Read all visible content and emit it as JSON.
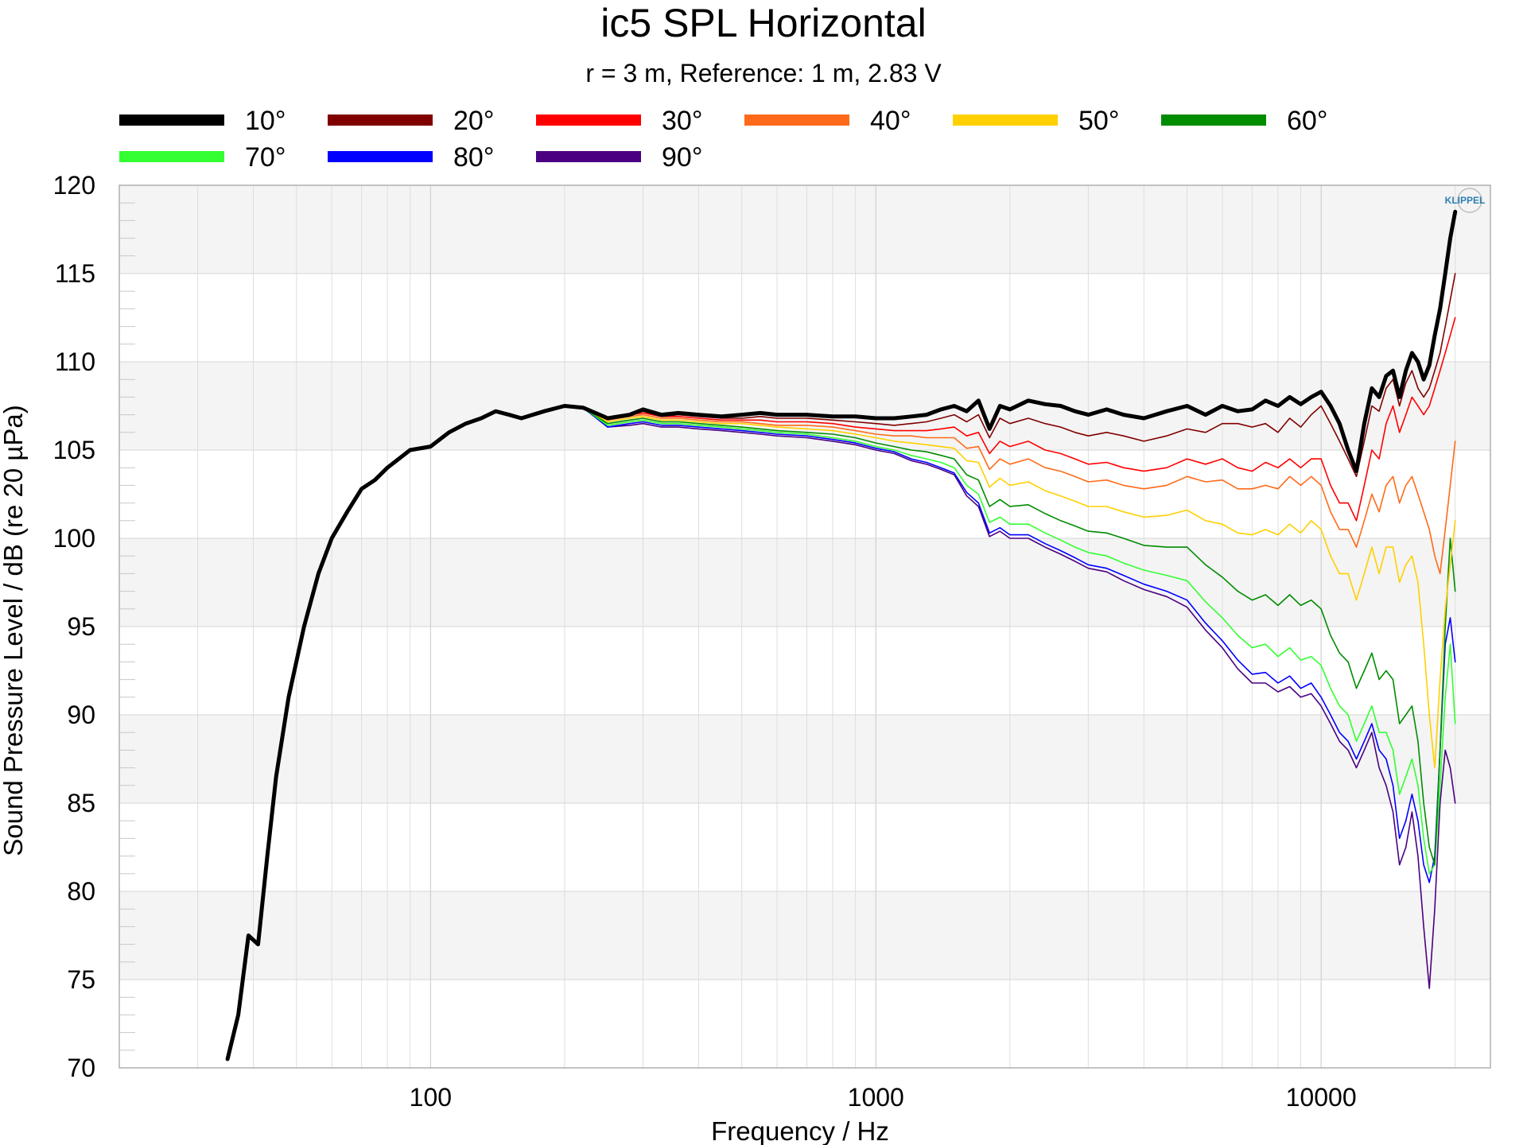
{
  "chart_data": {
    "type": "line",
    "title": "ic5 SPL Horizontal",
    "subtitle": "r = 3 m,  Reference: 1 m, 2.83 V",
    "xlabel": "Frequency / Hz",
    "ylabel": "Sound Pressure Level / dB (re 20 µPa)",
    "xscale": "log",
    "xlim": [
      20,
      24000
    ],
    "ylim": [
      70,
      120
    ],
    "xticks": [
      100,
      1000,
      10000
    ],
    "xtick_labels": [
      "100",
      "1000",
      "10000"
    ],
    "yticks": [
      70,
      75,
      80,
      85,
      90,
      95,
      100,
      105,
      110,
      115,
      120
    ],
    "yticks_labels": [
      "70",
      "75",
      "80",
      "85",
      "90",
      "95",
      "100",
      "105",
      "110",
      "115",
      "120"
    ],
    "grid": true,
    "legend_position": "top",
    "logo": "KLIPPEL",
    "x": [
      35,
      37,
      39,
      41,
      43,
      45,
      48,
      52,
      56,
      60,
      65,
      70,
      75,
      80,
      90,
      100,
      110,
      120,
      130,
      140,
      150,
      160,
      180,
      200,
      220,
      250,
      280,
      300,
      330,
      360,
      400,
      450,
      500,
      550,
      600,
      700,
      800,
      900,
      1000,
      1100,
      1200,
      1300,
      1400,
      1500,
      1600,
      1700,
      1800,
      1900,
      2000,
      2200,
      2400,
      2600,
      2800,
      3000,
      3300,
      3600,
      4000,
      4500,
      5000,
      5500,
      6000,
      6500,
      7000,
      7500,
      8000,
      8500,
      9000,
      9500,
      10000,
      10500,
      11000,
      11500,
      12000,
      12500,
      13000,
      13500,
      14000,
      14500,
      15000,
      15500,
      16000,
      16500,
      17000,
      17500,
      18000,
      18500,
      19000,
      19500,
      20000
    ],
    "series": [
      {
        "name": "10°",
        "color": "#000000",
        "width": 5,
        "values": [
          70.5,
          73.0,
          77.5,
          77.0,
          82.0,
          86.5,
          91.0,
          95.0,
          98.0,
          100.0,
          101.5,
          102.8,
          103.3,
          104.0,
          105.0,
          105.2,
          106.0,
          106.5,
          106.8,
          107.2,
          107.0,
          106.8,
          107.2,
          107.5,
          107.4,
          106.8,
          107.0,
          107.3,
          107.0,
          107.1,
          107.0,
          106.9,
          107.0,
          107.1,
          107.0,
          107.0,
          106.9,
          106.9,
          106.8,
          106.8,
          106.9,
          107.0,
          107.3,
          107.5,
          107.2,
          107.8,
          106.2,
          107.5,
          107.3,
          107.8,
          107.6,
          107.5,
          107.2,
          107.0,
          107.3,
          107.0,
          106.8,
          107.2,
          107.5,
          107.0,
          107.5,
          107.2,
          107.3,
          107.8,
          107.5,
          108.0,
          107.6,
          108.0,
          108.3,
          107.5,
          106.5,
          105.0,
          103.8,
          106.5,
          108.5,
          108.0,
          109.2,
          109.5,
          108.0,
          109.5,
          110.5,
          110.0,
          109.0,
          109.8,
          111.5,
          113.0,
          115.0,
          117.0,
          118.5
        ]
      },
      {
        "name": "20°",
        "color": "#800000",
        "width": 1.6,
        "values": [
          70.5,
          73.0,
          77.5,
          77.0,
          82.0,
          86.5,
          91.0,
          95.0,
          98.0,
          100.0,
          101.5,
          102.8,
          103.3,
          104.0,
          105.0,
          105.2,
          106.0,
          106.5,
          106.8,
          107.2,
          107.0,
          106.8,
          107.2,
          107.5,
          107.4,
          106.8,
          107.0,
          107.2,
          106.9,
          107.0,
          106.9,
          106.8,
          106.8,
          106.9,
          106.8,
          106.8,
          106.7,
          106.6,
          106.5,
          106.4,
          106.5,
          106.6,
          106.8,
          107.0,
          106.6,
          107.0,
          105.7,
          106.8,
          106.5,
          106.8,
          106.5,
          106.3,
          106.0,
          105.8,
          106.0,
          105.8,
          105.5,
          105.8,
          106.2,
          106.0,
          106.5,
          106.5,
          106.3,
          106.5,
          106.0,
          106.8,
          106.3,
          107.0,
          107.5,
          106.5,
          105.5,
          104.5,
          103.5,
          105.5,
          107.5,
          107.2,
          108.5,
          109.0,
          107.5,
          108.8,
          109.5,
          108.5,
          108.0,
          108.5,
          109.5,
          110.5,
          112.0,
          113.5,
          115.0
        ]
      },
      {
        "name": "30°",
        "color": "#ff0000",
        "width": 1.6,
        "values": [
          70.5,
          73.0,
          77.5,
          77.0,
          82.0,
          86.5,
          91.0,
          95.0,
          98.0,
          100.0,
          101.5,
          102.8,
          103.3,
          104.0,
          105.0,
          105.2,
          106.0,
          106.5,
          106.8,
          107.2,
          107.0,
          106.8,
          107.2,
          107.5,
          107.4,
          106.8,
          107.0,
          107.1,
          106.9,
          106.9,
          106.8,
          106.7,
          106.7,
          106.7,
          106.6,
          106.6,
          106.5,
          106.3,
          106.2,
          106.1,
          106.1,
          106.1,
          106.2,
          106.3,
          105.8,
          106.0,
          104.8,
          105.5,
          105.2,
          105.5,
          105.0,
          104.8,
          104.5,
          104.2,
          104.3,
          104.0,
          103.8,
          104.0,
          104.5,
          104.2,
          104.5,
          104.0,
          103.8,
          104.3,
          104.0,
          104.5,
          104.0,
          104.5,
          104.5,
          103.0,
          102.0,
          102.0,
          101.0,
          103.0,
          105.0,
          104.5,
          106.5,
          107.5,
          106.0,
          107.0,
          108.0,
          107.5,
          107.0,
          107.5,
          108.5,
          109.5,
          110.5,
          111.5,
          112.5
        ]
      },
      {
        "name": "40°",
        "color": "#ff6a1a",
        "width": 1.6,
        "values": [
          70.5,
          73.0,
          77.5,
          77.0,
          82.0,
          86.5,
          91.0,
          95.0,
          98.0,
          100.0,
          101.5,
          102.8,
          103.3,
          104.0,
          105.0,
          105.2,
          106.0,
          106.5,
          106.8,
          107.2,
          107.0,
          106.8,
          107.2,
          107.5,
          107.4,
          106.7,
          106.9,
          107.0,
          106.8,
          106.8,
          106.7,
          106.6,
          106.6,
          106.5,
          106.4,
          106.4,
          106.3,
          106.1,
          105.9,
          105.8,
          105.8,
          105.7,
          105.7,
          105.7,
          105.1,
          105.2,
          103.9,
          104.5,
          104.2,
          104.5,
          104.0,
          103.8,
          103.5,
          103.2,
          103.3,
          103.0,
          102.8,
          103.0,
          103.5,
          103.2,
          103.3,
          102.8,
          102.8,
          103.0,
          102.8,
          103.5,
          103.0,
          103.5,
          103.0,
          101.5,
          100.5,
          100.5,
          99.5,
          101.0,
          102.5,
          101.5,
          103.0,
          103.5,
          102.0,
          103.0,
          103.5,
          102.5,
          101.5,
          100.5,
          99.0,
          98.0,
          100.5,
          103.0,
          105.5
        ]
      },
      {
        "name": "50°",
        "color": "#ffd000",
        "width": 1.6,
        "values": [
          70.5,
          73.0,
          77.5,
          77.0,
          82.0,
          86.5,
          91.0,
          95.0,
          98.0,
          100.0,
          101.5,
          102.8,
          103.3,
          104.0,
          105.0,
          105.2,
          106.0,
          106.5,
          106.8,
          107.2,
          107.0,
          106.8,
          107.2,
          107.5,
          107.4,
          106.6,
          106.8,
          106.9,
          106.7,
          106.7,
          106.6,
          106.5,
          106.5,
          106.4,
          106.3,
          106.2,
          106.1,
          105.9,
          105.7,
          105.5,
          105.4,
          105.3,
          105.2,
          105.1,
          104.4,
          104.3,
          102.9,
          103.4,
          103.0,
          103.2,
          102.7,
          102.4,
          102.1,
          101.8,
          101.8,
          101.5,
          101.2,
          101.3,
          101.6,
          101.0,
          100.8,
          100.3,
          100.2,
          100.5,
          100.2,
          100.8,
          100.3,
          101.0,
          100.5,
          99.0,
          98.0,
          98.0,
          96.5,
          98.0,
          99.5,
          98.0,
          99.5,
          99.5,
          97.5,
          98.5,
          99.0,
          97.5,
          94.0,
          90.0,
          87.0,
          92.0,
          96.0,
          98.5,
          101.0
        ]
      },
      {
        "name": "60°",
        "color": "#008c00",
        "width": 1.6,
        "values": [
          70.5,
          73.0,
          77.5,
          77.0,
          82.0,
          86.5,
          91.0,
          95.0,
          98.0,
          100.0,
          101.5,
          102.8,
          103.3,
          104.0,
          105.0,
          105.2,
          106.0,
          106.5,
          106.8,
          107.2,
          107.0,
          106.8,
          107.2,
          107.5,
          107.4,
          106.5,
          106.7,
          106.8,
          106.6,
          106.6,
          106.5,
          106.4,
          106.3,
          106.2,
          106.1,
          106.0,
          105.9,
          105.7,
          105.4,
          105.2,
          105.0,
          104.9,
          104.7,
          104.5,
          103.6,
          103.3,
          101.8,
          102.2,
          101.8,
          101.9,
          101.4,
          101.0,
          100.7,
          100.4,
          100.3,
          100.0,
          99.6,
          99.5,
          99.5,
          98.5,
          97.8,
          97.0,
          96.5,
          96.8,
          96.2,
          96.8,
          96.2,
          96.5,
          96.0,
          94.5,
          93.5,
          93.0,
          91.5,
          92.5,
          93.5,
          92.0,
          92.5,
          92.0,
          89.5,
          90.0,
          90.5,
          88.5,
          85.0,
          82.5,
          81.5,
          88.0,
          95.0,
          100.0,
          97.0
        ]
      },
      {
        "name": "70°",
        "color": "#33ff33",
        "width": 1.6,
        "values": [
          70.5,
          73.0,
          77.5,
          77.0,
          82.0,
          86.5,
          91.0,
          95.0,
          98.0,
          100.0,
          101.5,
          102.8,
          103.3,
          104.0,
          105.0,
          105.2,
          106.0,
          106.5,
          106.8,
          107.2,
          107.0,
          106.8,
          107.2,
          107.5,
          107.4,
          106.4,
          106.6,
          106.7,
          106.5,
          106.5,
          106.4,
          106.3,
          106.2,
          106.1,
          106.0,
          105.9,
          105.7,
          105.5,
          105.2,
          105.0,
          104.7,
          104.5,
          104.3,
          104.0,
          103.0,
          102.5,
          100.9,
          101.2,
          100.8,
          100.8,
          100.3,
          99.9,
          99.5,
          99.2,
          99.0,
          98.6,
          98.2,
          97.9,
          97.6,
          96.4,
          95.5,
          94.5,
          93.8,
          94.0,
          93.3,
          93.8,
          93.1,
          93.3,
          92.8,
          91.5,
          90.5,
          90.0,
          88.5,
          89.5,
          90.5,
          89.0,
          89.0,
          88.0,
          85.5,
          86.5,
          87.5,
          86.0,
          83.0,
          81.0,
          81.5,
          86.0,
          91.0,
          94.0,
          89.5
        ]
      },
      {
        "name": "80°",
        "color": "#0000ff",
        "width": 1.6,
        "values": [
          70.5,
          73.0,
          77.5,
          77.0,
          82.0,
          86.5,
          91.0,
          95.0,
          98.0,
          100.0,
          101.5,
          102.8,
          103.3,
          104.0,
          105.0,
          105.2,
          106.0,
          106.5,
          106.8,
          107.2,
          107.0,
          106.8,
          107.2,
          107.5,
          107.4,
          106.3,
          106.5,
          106.6,
          106.4,
          106.4,
          106.3,
          106.2,
          106.1,
          106.0,
          105.9,
          105.8,
          105.6,
          105.4,
          105.1,
          104.9,
          104.5,
          104.3,
          104.0,
          103.7,
          102.6,
          102.0,
          100.3,
          100.6,
          100.2,
          100.2,
          99.7,
          99.3,
          98.9,
          98.5,
          98.3,
          97.9,
          97.4,
          97.0,
          96.5,
          95.2,
          94.2,
          93.1,
          92.3,
          92.4,
          91.8,
          92.2,
          91.5,
          91.8,
          91.0,
          90.0,
          89.0,
          88.5,
          87.5,
          88.5,
          89.5,
          88.0,
          87.5,
          86.0,
          83.0,
          84.0,
          85.5,
          84.0,
          81.5,
          80.5,
          82.0,
          88.0,
          94.0,
          95.5,
          93.0
        ]
      },
      {
        "name": "90°",
        "color": "#4b0082",
        "width": 1.6,
        "values": [
          70.5,
          73.0,
          77.5,
          77.0,
          82.0,
          86.5,
          91.0,
          95.0,
          98.0,
          100.0,
          101.5,
          102.8,
          103.3,
          104.0,
          105.0,
          105.2,
          106.0,
          106.5,
          106.8,
          107.2,
          107.0,
          106.8,
          107.2,
          107.5,
          107.4,
          106.3,
          106.4,
          106.5,
          106.3,
          106.3,
          106.2,
          106.1,
          106.0,
          105.9,
          105.8,
          105.7,
          105.5,
          105.3,
          105.0,
          104.8,
          104.4,
          104.2,
          103.9,
          103.6,
          102.4,
          101.8,
          100.1,
          100.4,
          100.0,
          100.0,
          99.5,
          99.1,
          98.7,
          98.3,
          98.1,
          97.6,
          97.1,
          96.7,
          96.1,
          94.8,
          93.8,
          92.6,
          91.8,
          91.8,
          91.3,
          91.6,
          91.0,
          91.2,
          90.5,
          89.5,
          88.5,
          88.0,
          87.0,
          88.0,
          89.0,
          87.0,
          86.0,
          84.5,
          81.5,
          82.5,
          84.5,
          82.0,
          78.0,
          74.5,
          79.0,
          85.0,
          88.0,
          87.0,
          85.0
        ]
      }
    ]
  }
}
